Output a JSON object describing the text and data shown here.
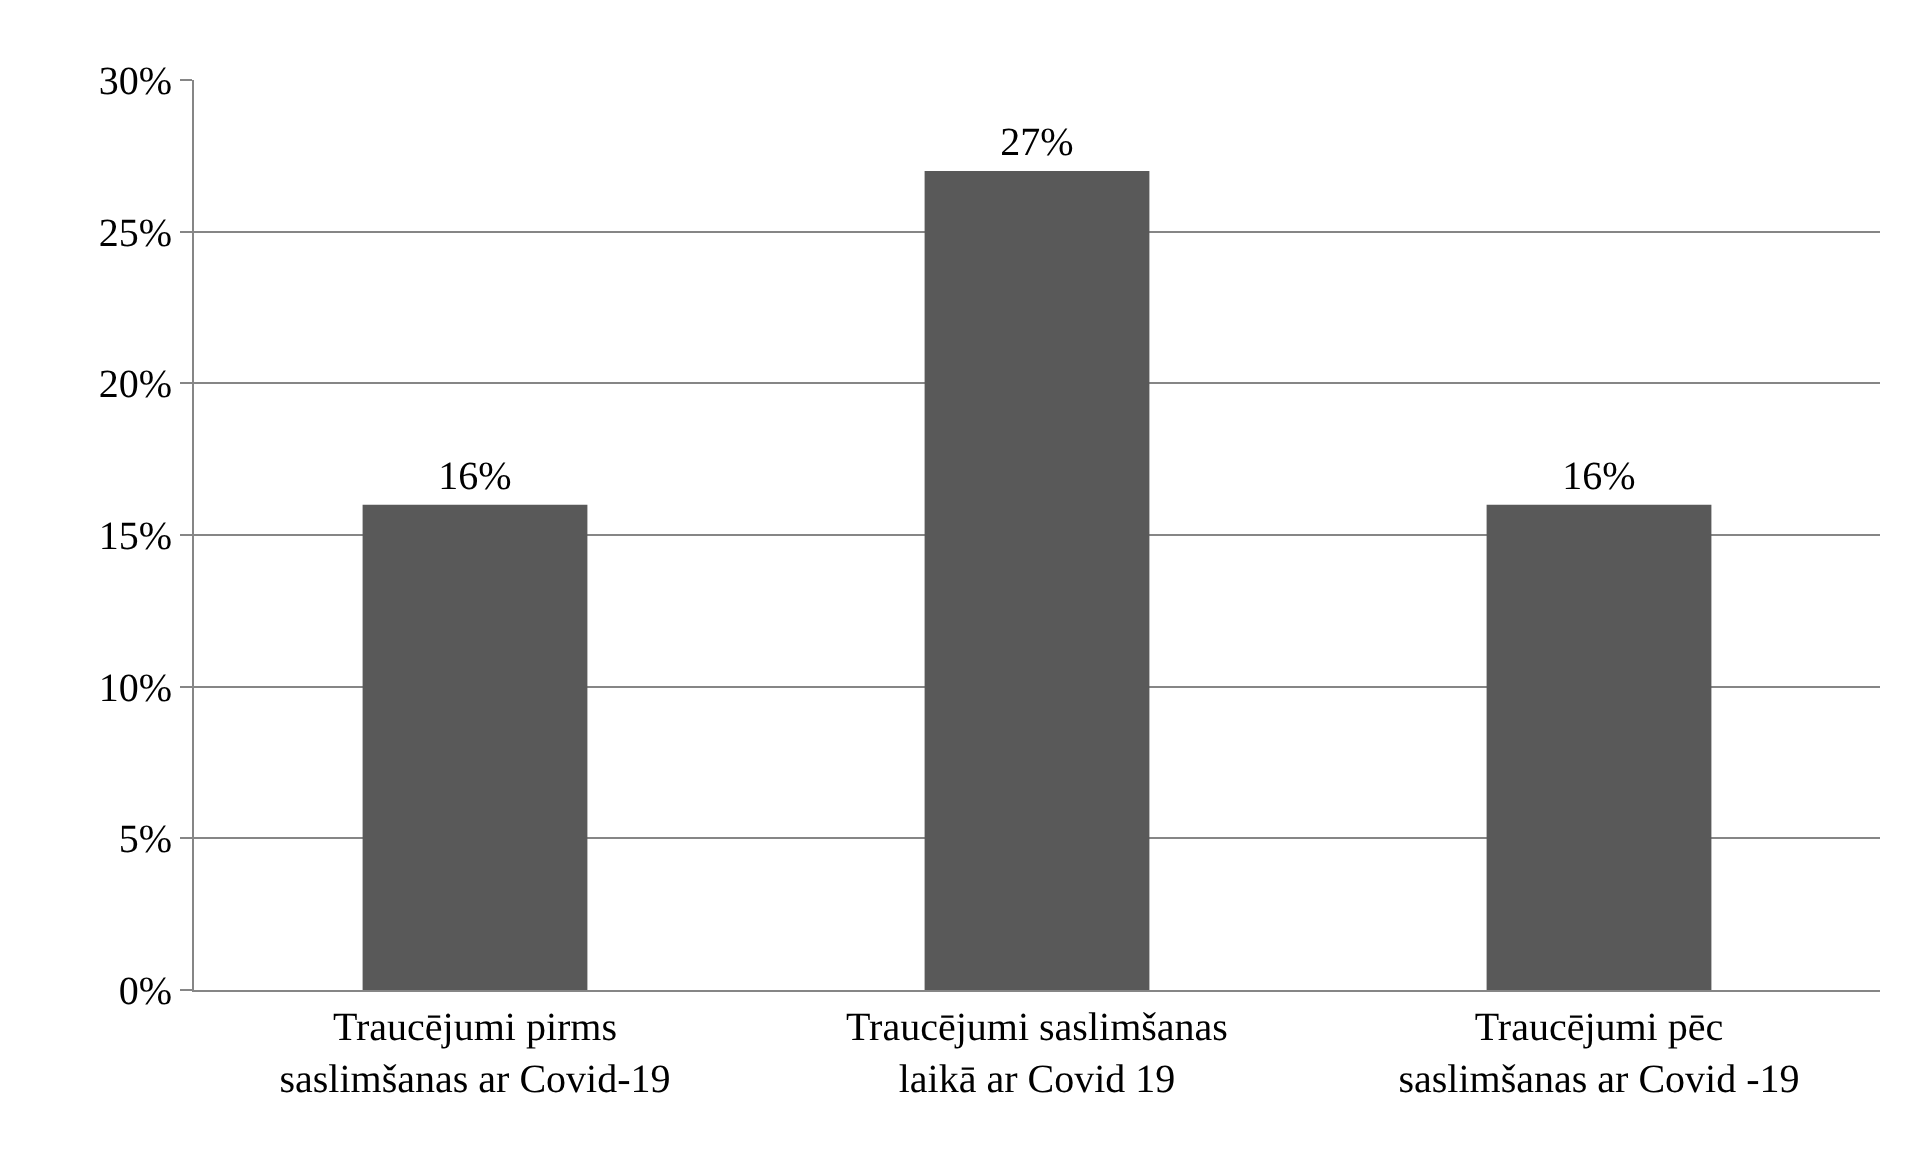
{
  "chart_data": {
    "type": "bar",
    "categories": [
      "Traucējumi pirms\nsaslimšanas ar Covid-19",
      "Traucējumi saslimšanas\nlaikā ar Covid 19",
      "Traucējumi pēc\nsaslimšanas ar Covid -19"
    ],
    "values": [
      16,
      27,
      16
    ],
    "value_labels": [
      "16%",
      "27%",
      "16%"
    ],
    "color": "#595959",
    "ylim": [
      0,
      30
    ],
    "yticks": [
      {
        "value": 0,
        "label": "0%"
      },
      {
        "value": 5,
        "label": "5%"
      },
      {
        "value": 10,
        "label": "10%"
      },
      {
        "value": 15,
        "label": "15%"
      },
      {
        "value": 20,
        "label": "20%"
      },
      {
        "value": 25,
        "label": "25%"
      },
      {
        "value": 30,
        "label": "30%"
      }
    ],
    "grid": "y"
  }
}
